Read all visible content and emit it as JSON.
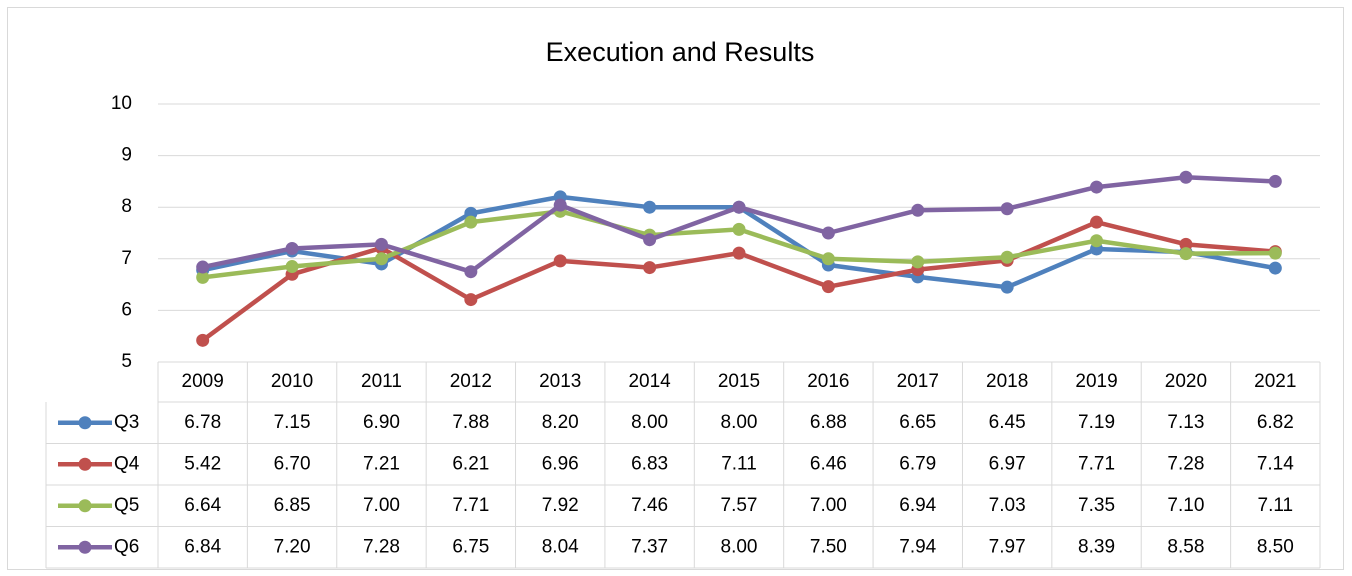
{
  "chart_data": {
    "type": "line",
    "title": "Execution and Results",
    "categories": [
      "2009",
      "2010",
      "2011",
      "2012",
      "2013",
      "2014",
      "2015",
      "2016",
      "2017",
      "2018",
      "2019",
      "2020",
      "2021"
    ],
    "ylim": [
      5,
      10
    ],
    "yticks": [
      5,
      6,
      7,
      8,
      9,
      10
    ],
    "grid": true,
    "series": [
      {
        "name": "Q3",
        "color": "#4f81bd",
        "values": [
          6.78,
          7.15,
          6.9,
          7.88,
          8.2,
          8,
          8,
          6.88,
          6.65,
          6.45,
          7.19,
          7.13,
          6.82
        ],
        "value_labels": [
          "6.78",
          "7.15",
          "6.90",
          "7.88",
          "8.20",
          "8.00",
          "8.00",
          "6.88",
          "6.65",
          "6.45",
          "7.19",
          "7.13",
          "6.82"
        ]
      },
      {
        "name": "Q4",
        "color": "#c0504d",
        "values": [
          5.42,
          6.7,
          7.21,
          6.21,
          6.96,
          6.83,
          7.11,
          6.46,
          6.79,
          6.97,
          7.71,
          7.28,
          7.14
        ],
        "value_labels": [
          "5.42",
          "6.70",
          "7.21",
          "6.21",
          "6.96",
          "6.83",
          "7.11",
          "6.46",
          "6.79",
          "6.97",
          "7.71",
          "7.28",
          "7.14"
        ]
      },
      {
        "name": "Q5",
        "color": "#9bbb59",
        "values": [
          6.64,
          6.85,
          7,
          7.71,
          7.92,
          7.46,
          7.57,
          7,
          6.94,
          7.03,
          7.35,
          7.1,
          7.11
        ],
        "value_labels": [
          "6.64",
          "6.85",
          "7.00",
          "7.71",
          "7.92",
          "7.46",
          "7.57",
          "7.00",
          "6.94",
          "7.03",
          "7.35",
          "7.10",
          "7.11"
        ]
      },
      {
        "name": "Q6",
        "color": "#8064a2",
        "values": [
          6.84,
          7.2,
          7.28,
          6.75,
          8.04,
          7.37,
          8,
          7.5,
          7.94,
          7.97,
          8.39,
          8.58,
          8.5
        ],
        "value_labels": [
          "6.84",
          "7.20",
          "7.28",
          "6.75",
          "8.04",
          "7.37",
          "8.00",
          "7.50",
          "7.94",
          "7.97",
          "8.39",
          "8.58",
          "8.50"
        ]
      }
    ]
  }
}
